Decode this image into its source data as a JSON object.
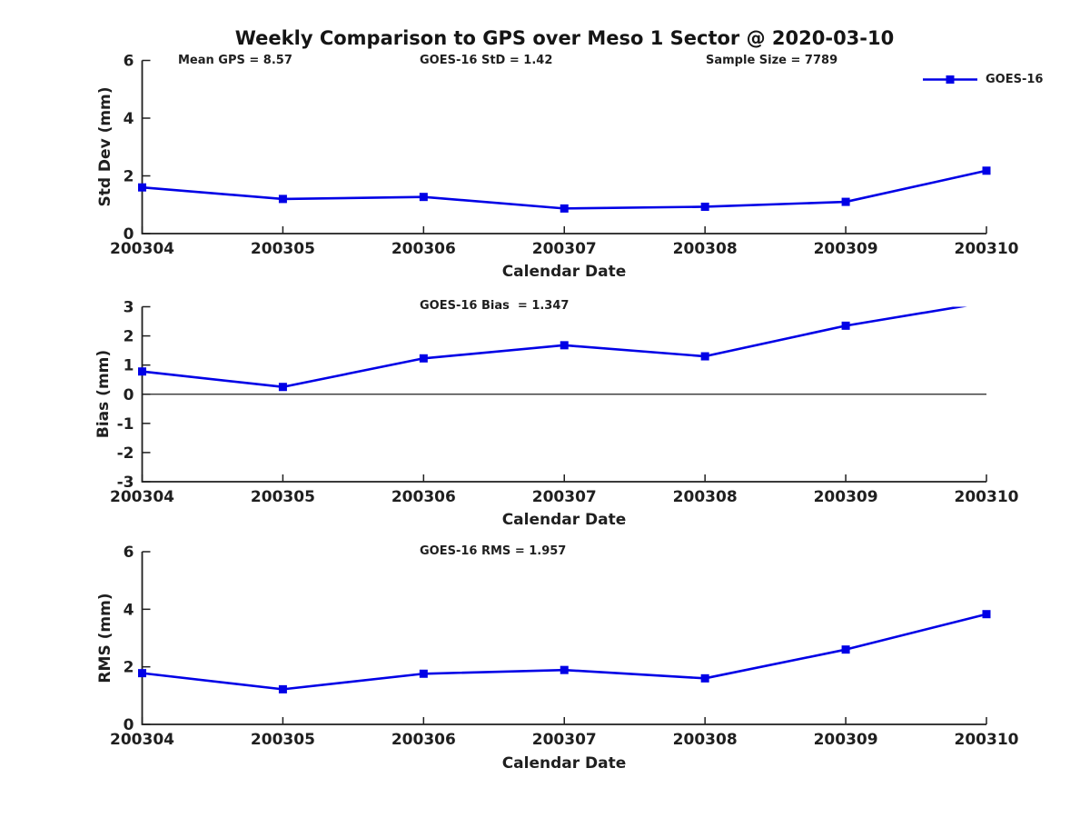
{
  "title": "Weekly Comparison to GPS over Meso 1 Sector @ 2020-03-10",
  "legend": {
    "label": "GOES-16"
  },
  "colors": {
    "series": "#0000e6",
    "text": "#1f1f1f",
    "axis": "#1f1f1f",
    "background": "#ffffff"
  },
  "chart_data": [
    {
      "type": "line",
      "categories": [
        "200304",
        "200305",
        "200306",
        "200307",
        "200308",
        "200309",
        "200310"
      ],
      "series": [
        {
          "name": "GOES-16",
          "color": "#0000e6",
          "marker": "square",
          "values": [
            1.6,
            1.2,
            1.27,
            0.87,
            0.93,
            1.1,
            2.18
          ]
        }
      ],
      "xlabel": "Calendar Date",
      "ylabel": "Std Dev (mm)",
      "ylim": [
        0,
        6
      ],
      "yticks": [
        0,
        2,
        4,
        6
      ],
      "grid": false,
      "zero_line": false,
      "legend_position": "upper right",
      "annotations": [
        {
          "text": "Mean GPS = 8.57"
        },
        {
          "text": "GOES-16 StD = 1.42"
        },
        {
          "text": "Sample Size = 7789"
        }
      ]
    },
    {
      "type": "line",
      "categories": [
        "200304",
        "200305",
        "200306",
        "200307",
        "200308",
        "200309",
        "200310"
      ],
      "series": [
        {
          "name": "GOES-16",
          "color": "#0000e6",
          "marker": "square",
          "values": [
            0.78,
            0.25,
            1.23,
            1.68,
            1.3,
            2.35,
            3.15
          ]
        }
      ],
      "xlabel": "Calendar Date",
      "ylabel": "Bias (mm)",
      "ylim": [
        -3,
        3
      ],
      "yticks": [
        -3,
        -2,
        -1,
        0,
        1,
        2,
        3
      ],
      "grid": false,
      "zero_line": true,
      "clip_to_axes": true,
      "annotations": [
        {
          "text": "GOES-16 Bias  = 1.347"
        }
      ]
    },
    {
      "type": "line",
      "categories": [
        "200304",
        "200305",
        "200306",
        "200307",
        "200308",
        "200309",
        "200310"
      ],
      "series": [
        {
          "name": "GOES-16",
          "color": "#0000e6",
          "marker": "square",
          "values": [
            1.78,
            1.22,
            1.76,
            1.89,
            1.6,
            2.6,
            3.83
          ]
        }
      ],
      "xlabel": "Calendar Date",
      "ylabel": "RMS (mm)",
      "ylim": [
        0,
        6
      ],
      "yticks": [
        0,
        2,
        4,
        6
      ],
      "grid": false,
      "zero_line": false,
      "annotations": [
        {
          "text": "GOES-16 RMS = 1.957"
        }
      ]
    }
  ]
}
